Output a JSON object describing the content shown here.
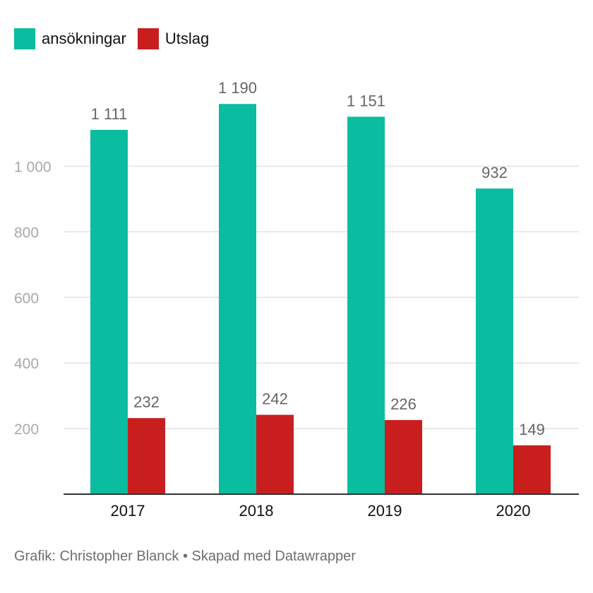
{
  "chart_data": {
    "type": "bar",
    "categories": [
      "2017",
      "2018",
      "2019",
      "2020"
    ],
    "series": [
      {
        "name": "ansökningar",
        "color": "#0bbda0",
        "values": [
          1111,
          1190,
          1151,
          932
        ],
        "labels": [
          "1 111",
          "1 190",
          "1 151",
          "932"
        ]
      },
      {
        "name": "Utslag",
        "color": "#c81e1e",
        "values": [
          232,
          242,
          226,
          149
        ],
        "labels": [
          "232",
          "242",
          "226",
          "149"
        ]
      }
    ],
    "yticks": [
      200,
      400,
      600,
      800,
      1000
    ],
    "ytick_labels": [
      "200",
      "400",
      "600",
      "800",
      "1 000"
    ],
    "ylim": [
      0,
      1300
    ],
    "grid": true,
    "legend_position": "top-left"
  },
  "footer": "Grafik: Christopher Blanck • Skapad med Datawrapper"
}
